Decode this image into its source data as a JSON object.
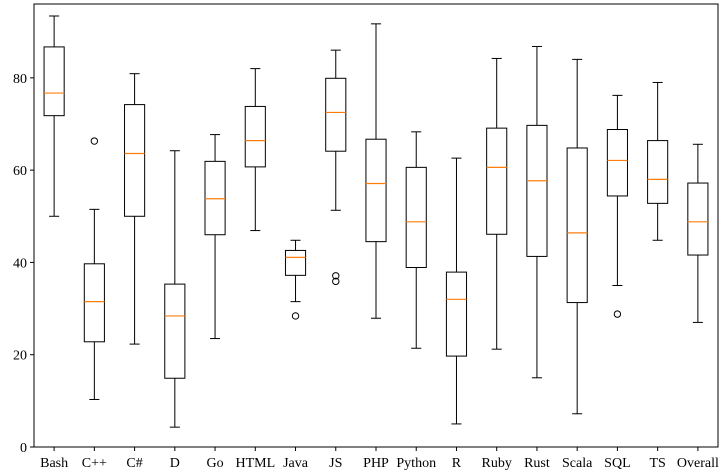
{
  "chart_data": {
    "type": "boxplot",
    "title": "",
    "xlabel": "",
    "ylabel": "",
    "ylim": [
      0,
      96
    ],
    "yticks": [
      0,
      20,
      40,
      60,
      80
    ],
    "grid": false,
    "legend": "none",
    "colors": {
      "box": "#000000",
      "median": "#ff7f0e",
      "background": "#ffffff"
    },
    "categories": [
      "Bash",
      "C++",
      "C#",
      "D",
      "Go",
      "HTML",
      "Java",
      "JS",
      "PHP",
      "Python",
      "R",
      "Ruby",
      "Rust",
      "Scala",
      "SQL",
      "TS",
      "Overall"
    ],
    "boxes": [
      {
        "whisker_low": 50.0,
        "q1": 71.8,
        "median": 76.7,
        "q3": 86.7,
        "whisker_high": 93.4,
        "outliers": []
      },
      {
        "whisker_low": 10.3,
        "q1": 22.8,
        "median": 31.5,
        "q3": 39.7,
        "whisker_high": 51.5,
        "outliers": [
          66.3
        ]
      },
      {
        "whisker_low": 22.3,
        "q1": 50.0,
        "median": 63.6,
        "q3": 74.2,
        "whisker_high": 80.9,
        "outliers": []
      },
      {
        "whisker_low": 4.3,
        "q1": 14.9,
        "median": 28.4,
        "q3": 35.3,
        "whisker_high": 64.2,
        "outliers": []
      },
      {
        "whisker_low": 23.5,
        "q1": 46.0,
        "median": 53.8,
        "q3": 61.9,
        "whisker_high": 67.7,
        "outliers": []
      },
      {
        "whisker_low": 46.9,
        "q1": 60.7,
        "median": 66.4,
        "q3": 73.8,
        "whisker_high": 82.0,
        "outliers": []
      },
      {
        "whisker_low": 31.5,
        "q1": 37.2,
        "median": 41.1,
        "q3": 42.6,
        "whisker_high": 44.8,
        "outliers": [
          28.4
        ]
      },
      {
        "whisker_low": 51.3,
        "q1": 64.1,
        "median": 72.5,
        "q3": 79.9,
        "whisker_high": 86.0,
        "outliers": [
          37.1,
          35.9
        ]
      },
      {
        "whisker_low": 27.9,
        "q1": 44.5,
        "median": 57.1,
        "q3": 66.7,
        "whisker_high": 91.7,
        "outliers": []
      },
      {
        "whisker_low": 21.4,
        "q1": 38.9,
        "median": 48.8,
        "q3": 60.6,
        "whisker_high": 68.3,
        "outliers": []
      },
      {
        "whisker_low": 5.0,
        "q1": 19.7,
        "median": 32.0,
        "q3": 37.9,
        "whisker_high": 62.6,
        "outliers": []
      },
      {
        "whisker_low": 21.2,
        "q1": 46.1,
        "median": 60.6,
        "q3": 69.1,
        "whisker_high": 84.2,
        "outliers": []
      },
      {
        "whisker_low": 15.0,
        "q1": 41.3,
        "median": 57.7,
        "q3": 69.7,
        "whisker_high": 86.8,
        "outliers": []
      },
      {
        "whisker_low": 7.2,
        "q1": 31.3,
        "median": 46.4,
        "q3": 64.8,
        "whisker_high": 84.0,
        "outliers": []
      },
      {
        "whisker_low": 35.0,
        "q1": 54.4,
        "median": 62.1,
        "q3": 68.8,
        "whisker_high": 76.2,
        "outliers": [
          28.8
        ]
      },
      {
        "whisker_low": 44.8,
        "q1": 52.8,
        "median": 58.0,
        "q3": 66.4,
        "whisker_high": 79.0,
        "outliers": []
      },
      {
        "whisker_low": 27.0,
        "q1": 41.6,
        "median": 48.8,
        "q3": 57.2,
        "whisker_high": 65.6,
        "outliers": []
      }
    ]
  }
}
